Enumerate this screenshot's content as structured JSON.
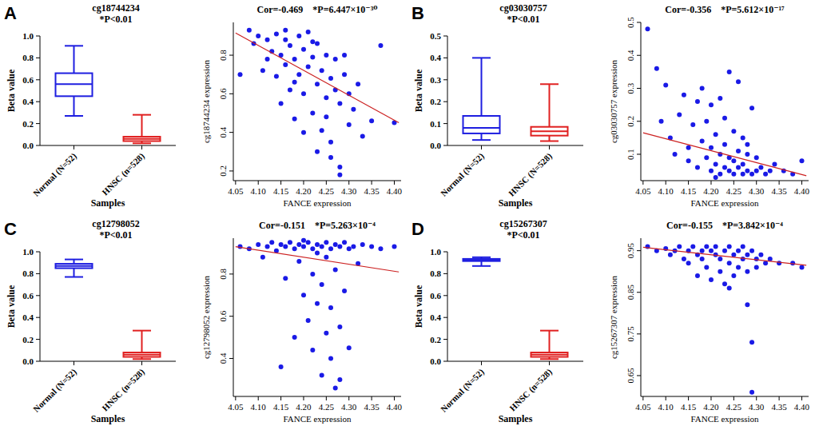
{
  "chart_data": [
    {
      "type": "box",
      "panel_label": "A",
      "title": "cg18744234",
      "subtitle": "*P<0.01",
      "x_label": "Samples",
      "y_label": "Beta value",
      "categories": [
        "Normal (N=52)",
        "HNSC (n=528)"
      ],
      "colors": [
        "#1e1ee0",
        "#e02020"
      ],
      "ylim": [
        0,
        1
      ],
      "yticks": [
        {
          "value": 0,
          "label": "0.0"
        },
        0.2,
        0.4,
        0.6,
        0.8,
        {
          "value": 1,
          "label": "1.0"
        }
      ],
      "boxes": [
        {
          "min": 0.27,
          "q1": 0.45,
          "median": 0.56,
          "q3": 0.66,
          "max": 0.91
        },
        {
          "min": 0.02,
          "q1": 0.04,
          "median": 0.06,
          "q3": 0.08,
          "max": 0.28
        }
      ]
    },
    {
      "type": "scatter",
      "title": "Cor=-0.469",
      "subtitle": "*P=6.447×10⁻³⁰",
      "x_label": "FANCE expression",
      "y_label": "cg18744234 expression",
      "color": "#1a1ae6",
      "xlim": [
        4.045,
        4.415
      ],
      "xticks": [
        4.05,
        {
          "value": 4.1,
          "label": "4.10"
        },
        4.15,
        {
          "value": 4.2,
          "label": "4.20"
        },
        4.25,
        {
          "value": 4.3,
          "label": "4.30"
        },
        4.35,
        {
          "value": 4.4,
          "label": "4.40"
        }
      ],
      "ylim": [
        0.15,
        0.97
      ],
      "yticks": [
        0.2,
        0.4,
        0.6,
        0.8
      ],
      "fit_line": {
        "color": "#cc2222",
        "x": [
          4.05,
          4.41
        ],
        "y": [
          0.915,
          0.45
        ]
      },
      "points": [
        [
          4.06,
          0.7
        ],
        [
          4.08,
          0.93
        ],
        [
          4.09,
          0.86
        ],
        [
          4.1,
          0.9
        ],
        [
          4.11,
          0.72
        ],
        [
          4.12,
          0.78
        ],
        [
          4.12,
          0.88
        ],
        [
          4.13,
          0.82
        ],
        [
          4.14,
          0.69
        ],
        [
          4.14,
          0.91
        ],
        [
          4.15,
          0.55
        ],
        [
          4.15,
          0.8
        ],
        [
          4.16,
          0.75
        ],
        [
          4.16,
          0.88
        ],
        [
          4.17,
          0.62
        ],
        [
          4.17,
          0.85
        ],
        [
          4.18,
          0.47
        ],
        [
          4.18,
          0.78
        ],
        [
          4.19,
          0.7
        ],
        [
          4.19,
          0.9
        ],
        [
          4.2,
          0.6
        ],
        [
          4.2,
          0.83
        ],
        [
          4.21,
          0.74
        ],
        [
          4.21,
          0.92
        ],
        [
          4.22,
          0.5
        ],
        [
          4.22,
          0.79
        ],
        [
          4.23,
          0.65
        ],
        [
          4.23,
          0.86
        ],
        [
          4.24,
          0.41
        ],
        [
          4.24,
          0.72
        ],
        [
          4.25,
          0.58
        ],
        [
          4.25,
          0.8
        ],
        [
          4.26,
          0.35
        ],
        [
          4.26,
          0.68
        ],
        [
          4.27,
          0.62
        ],
        [
          4.27,
          0.78
        ],
        [
          4.28,
          0.22
        ],
        [
          4.28,
          0.55
        ],
        [
          4.29,
          0.7
        ],
        [
          4.3,
          0.44
        ],
        [
          4.3,
          0.6
        ],
        [
          4.31,
          0.52
        ],
        [
          4.32,
          0.65
        ],
        [
          4.33,
          0.38
        ],
        [
          4.35,
          0.46
        ],
        [
          4.37,
          0.85
        ],
        [
          4.4,
          0.45
        ],
        [
          4.2,
          0.4
        ],
        [
          4.23,
          0.3
        ],
        [
          4.18,
          0.66
        ],
        [
          4.26,
          0.27
        ],
        [
          4.29,
          0.8
        ],
        [
          4.22,
          0.87
        ],
        [
          4.25,
          0.48
        ],
        [
          4.16,
          0.93
        ],
        [
          4.28,
          0.18
        ]
      ]
    },
    {
      "type": "box",
      "panel_label": "B",
      "title": "cg03030757",
      "subtitle": "*P<0.01",
      "x_label": "Samples",
      "y_label": "Beta value",
      "categories": [
        "Normal (N=52)",
        "HNSC (N=528)"
      ],
      "colors": [
        "#1e1ee0",
        "#e02020"
      ],
      "ylim": [
        0,
        0.5
      ],
      "yticks": [
        {
          "value": 0,
          "label": "0.0"
        },
        0.1,
        0.2,
        0.3,
        0.4,
        0.5
      ],
      "boxes": [
        {
          "min": 0.025,
          "q1": 0.055,
          "median": 0.08,
          "q3": 0.135,
          "max": 0.4
        },
        {
          "min": 0.02,
          "q1": 0.045,
          "median": 0.065,
          "q3": 0.085,
          "max": 0.28
        }
      ]
    },
    {
      "type": "scatter",
      "title": "Cor=-0.356",
      "subtitle": "*P=5.612×10⁻¹⁷",
      "x_label": "FANCE expression",
      "y_label": "cg03030757 expression",
      "color": "#1a1ae6",
      "xlim": [
        4.045,
        4.415
      ],
      "xticks": [
        4.05,
        {
          "value": 4.1,
          "label": "4.10"
        },
        4.15,
        {
          "value": 4.2,
          "label": "4.20"
        },
        4.25,
        {
          "value": 4.3,
          "label": "4.30"
        },
        4.35,
        {
          "value": 4.4,
          "label": "4.40"
        }
      ],
      "ylim": [
        0.02,
        0.5
      ],
      "yticks": [
        0.1,
        0.2,
        0.3,
        0.4,
        0.5
      ],
      "fit_line": {
        "color": "#cc2222",
        "x": [
          4.05,
          4.41
        ],
        "y": [
          0.165,
          0.035
        ]
      },
      "points": [
        [
          4.06,
          0.48
        ],
        [
          4.08,
          0.36
        ],
        [
          4.09,
          0.2
        ],
        [
          4.1,
          0.31
        ],
        [
          4.11,
          0.15
        ],
        [
          4.12,
          0.1
        ],
        [
          4.13,
          0.22
        ],
        [
          4.14,
          0.28
        ],
        [
          4.15,
          0.12
        ],
        [
          4.15,
          0.08
        ],
        [
          4.16,
          0.19
        ],
        [
          4.17,
          0.26
        ],
        [
          4.17,
          0.06
        ],
        [
          4.18,
          0.14
        ],
        [
          4.18,
          0.3
        ],
        [
          4.19,
          0.09
        ],
        [
          4.19,
          0.2
        ],
        [
          4.2,
          0.05
        ],
        [
          4.2,
          0.12
        ],
        [
          4.2,
          0.25
        ],
        [
          4.21,
          0.07
        ],
        [
          4.21,
          0.16
        ],
        [
          4.22,
          0.04
        ],
        [
          4.22,
          0.1
        ],
        [
          4.22,
          0.27
        ],
        [
          4.23,
          0.06
        ],
        [
          4.23,
          0.13
        ],
        [
          4.23,
          0.21
        ],
        [
          4.24,
          0.05
        ],
        [
          4.24,
          0.09
        ],
        [
          4.24,
          0.35
        ],
        [
          4.25,
          0.04
        ],
        [
          4.25,
          0.08
        ],
        [
          4.25,
          0.17
        ],
        [
          4.26,
          0.06
        ],
        [
          4.26,
          0.11
        ],
        [
          4.26,
          0.32
        ],
        [
          4.27,
          0.04
        ],
        [
          4.27,
          0.07
        ],
        [
          4.27,
          0.15
        ],
        [
          4.28,
          0.05
        ],
        [
          4.28,
          0.1
        ],
        [
          4.29,
          0.04
        ],
        [
          4.29,
          0.24
        ],
        [
          4.3,
          0.05
        ],
        [
          4.3,
          0.09
        ],
        [
          4.31,
          0.06
        ],
        [
          4.32,
          0.04
        ],
        [
          4.33,
          0.05
        ],
        [
          4.34,
          0.07
        ],
        [
          4.36,
          0.05
        ],
        [
          4.38,
          0.04
        ],
        [
          4.4,
          0.08
        ],
        [
          4.21,
          0.03
        ],
        [
          4.28,
          0.13
        ]
      ]
    },
    {
      "type": "box",
      "panel_label": "C",
      "title": "cg12798052",
      "subtitle": "*P<0.01",
      "x_label": "Samples",
      "y_label": "Beta value",
      "categories": [
        "Normal (N=52)",
        "HNSC (n=528)"
      ],
      "colors": [
        "#1e1ee0",
        "#e02020"
      ],
      "ylim": [
        0,
        1
      ],
      "yticks": [
        {
          "value": 0,
          "label": "0.0"
        },
        0.2,
        0.4,
        0.6,
        0.8,
        {
          "value": 1,
          "label": "1.0"
        }
      ],
      "boxes": [
        {
          "min": 0.77,
          "q1": 0.85,
          "median": 0.87,
          "q3": 0.89,
          "max": 0.93
        },
        {
          "min": 0.02,
          "q1": 0.04,
          "median": 0.06,
          "q3": 0.08,
          "max": 0.28
        }
      ]
    },
    {
      "type": "scatter",
      "title": "Cor=-0.151",
      "subtitle": "*P=5.263×10⁻⁴",
      "x_label": "FANCE expression",
      "y_label": "cg12798052 expression",
      "color": "#1a1ae6",
      "xlim": [
        4.045,
        4.415
      ],
      "xticks": [
        4.05,
        {
          "value": 4.1,
          "label": "4.10"
        },
        4.15,
        {
          "value": 4.2,
          "label": "4.20"
        },
        4.25,
        {
          "value": 4.3,
          "label": "4.30"
        },
        4.35,
        {
          "value": 4.4,
          "label": "4.40"
        }
      ],
      "ylim": [
        0.22,
        0.97
      ],
      "yticks": [
        0.4,
        0.6,
        0.8
      ],
      "fit_line": {
        "color": "#cc2222",
        "x": [
          4.05,
          4.41
        ],
        "y": [
          0.93,
          0.81
        ]
      },
      "points": [
        [
          4.06,
          0.93
        ],
        [
          4.08,
          0.92
        ],
        [
          4.1,
          0.94
        ],
        [
          4.11,
          0.88
        ],
        [
          4.12,
          0.93
        ],
        [
          4.13,
          0.95
        ],
        [
          4.14,
          0.91
        ],
        [
          4.15,
          0.36
        ],
        [
          4.15,
          0.94
        ],
        [
          4.16,
          0.93
        ],
        [
          4.16,
          0.78
        ],
        [
          4.17,
          0.95
        ],
        [
          4.18,
          0.92
        ],
        [
          4.18,
          0.5
        ],
        [
          4.19,
          0.94
        ],
        [
          4.19,
          0.86
        ],
        [
          4.2,
          0.93
        ],
        [
          4.2,
          0.7
        ],
        [
          4.21,
          0.95
        ],
        [
          4.21,
          0.58
        ],
        [
          4.22,
          0.92
        ],
        [
          4.22,
          0.8
        ],
        [
          4.22,
          0.44
        ],
        [
          4.23,
          0.94
        ],
        [
          4.23,
          0.66
        ],
        [
          4.24,
          0.93
        ],
        [
          4.24,
          0.32
        ],
        [
          4.24,
          0.75
        ],
        [
          4.25,
          0.95
        ],
        [
          4.25,
          0.52
        ],
        [
          4.25,
          0.88
        ],
        [
          4.26,
          0.92
        ],
        [
          4.26,
          0.4
        ],
        [
          4.26,
          0.64
        ],
        [
          4.27,
          0.94
        ],
        [
          4.27,
          0.26
        ],
        [
          4.27,
          0.82
        ],
        [
          4.28,
          0.93
        ],
        [
          4.28,
          0.55
        ],
        [
          4.28,
          0.3
        ],
        [
          4.29,
          0.95
        ],
        [
          4.29,
          0.72
        ],
        [
          4.3,
          0.92
        ],
        [
          4.3,
          0.45
        ],
        [
          4.31,
          0.93
        ],
        [
          4.32,
          0.85
        ],
        [
          4.33,
          0.94
        ],
        [
          4.35,
          0.93
        ],
        [
          4.37,
          0.92
        ],
        [
          4.4,
          0.93
        ],
        [
          4.23,
          0.9
        ],
        [
          4.2,
          0.96
        ]
      ]
    },
    {
      "type": "box",
      "panel_label": "D",
      "title": "cg15267307",
      "subtitle": "*P<0.01",
      "x_label": "Samples",
      "y_label": "Beta value",
      "categories": [
        "Normal (N=52)",
        "HNSC (n=528)"
      ],
      "colors": [
        "#1e1ee0",
        "#e02020"
      ],
      "ylim": [
        0,
        1
      ],
      "yticks": [
        {
          "value": 0,
          "label": "0.0"
        },
        0.2,
        0.4,
        0.6,
        0.8,
        {
          "value": 1,
          "label": "1.0"
        }
      ],
      "boxes": [
        {
          "min": 0.87,
          "q1": 0.915,
          "median": 0.925,
          "q3": 0.935,
          "max": 0.95
        },
        {
          "min": 0.02,
          "q1": 0.04,
          "median": 0.06,
          "q3": 0.08,
          "max": 0.28
        }
      ]
    },
    {
      "type": "scatter",
      "title": "Cor=-0.155",
      "subtitle": "*P=3.842×10⁻⁴",
      "x_label": "FANCE expression",
      "y_label": "cg15267307 expression",
      "color": "#1a1ae6",
      "xlim": [
        4.045,
        4.415
      ],
      "xticks": [
        4.05,
        {
          "value": 4.1,
          "label": "4.10"
        },
        4.15,
        {
          "value": 4.2,
          "label": "4.20"
        },
        4.25,
        {
          "value": 4.3,
          "label": "4.30"
        },
        4.35,
        {
          "value": 4.4,
          "label": "4.40"
        }
      ],
      "ylim": [
        0.6,
        0.98
      ],
      "yticks": [
        0.65,
        0.75,
        0.85,
        0.95
      ],
      "fit_line": {
        "color": "#cc2222",
        "x": [
          4.05,
          4.41
        ],
        "y": [
          0.958,
          0.915
        ]
      },
      "points": [
        [
          4.06,
          0.96
        ],
        [
          4.08,
          0.95
        ],
        [
          4.1,
          0.955
        ],
        [
          4.11,
          0.94
        ],
        [
          4.12,
          0.95
        ],
        [
          4.13,
          0.96
        ],
        [
          4.14,
          0.93
        ],
        [
          4.15,
          0.95
        ],
        [
          4.15,
          0.92
        ],
        [
          4.16,
          0.96
        ],
        [
          4.17,
          0.94
        ],
        [
          4.17,
          0.89
        ],
        [
          4.18,
          0.95
        ],
        [
          4.18,
          0.93
        ],
        [
          4.19,
          0.96
        ],
        [
          4.19,
          0.91
        ],
        [
          4.2,
          0.95
        ],
        [
          4.2,
          0.88
        ],
        [
          4.21,
          0.94
        ],
        [
          4.21,
          0.96
        ],
        [
          4.22,
          0.93
        ],
        [
          4.22,
          0.9
        ],
        [
          4.23,
          0.95
        ],
        [
          4.23,
          0.87
        ],
        [
          4.24,
          0.96
        ],
        [
          4.24,
          0.92
        ],
        [
          4.25,
          0.94
        ],
        [
          4.25,
          0.89
        ],
        [
          4.26,
          0.95
        ],
        [
          4.26,
          0.91
        ],
        [
          4.27,
          0.93
        ],
        [
          4.27,
          0.96
        ],
        [
          4.28,
          0.94
        ],
        [
          4.28,
          0.82
        ],
        [
          4.28,
          0.9
        ],
        [
          4.29,
          0.95
        ],
        [
          4.29,
          0.73
        ],
        [
          4.29,
          0.61
        ],
        [
          4.3,
          0.93
        ],
        [
          4.3,
          0.91
        ],
        [
          4.31,
          0.94
        ],
        [
          4.32,
          0.92
        ],
        [
          4.33,
          0.93
        ],
        [
          4.35,
          0.92
        ],
        [
          4.38,
          0.92
        ],
        [
          4.4,
          0.91
        ],
        [
          4.24,
          0.86
        ]
      ]
    }
  ]
}
